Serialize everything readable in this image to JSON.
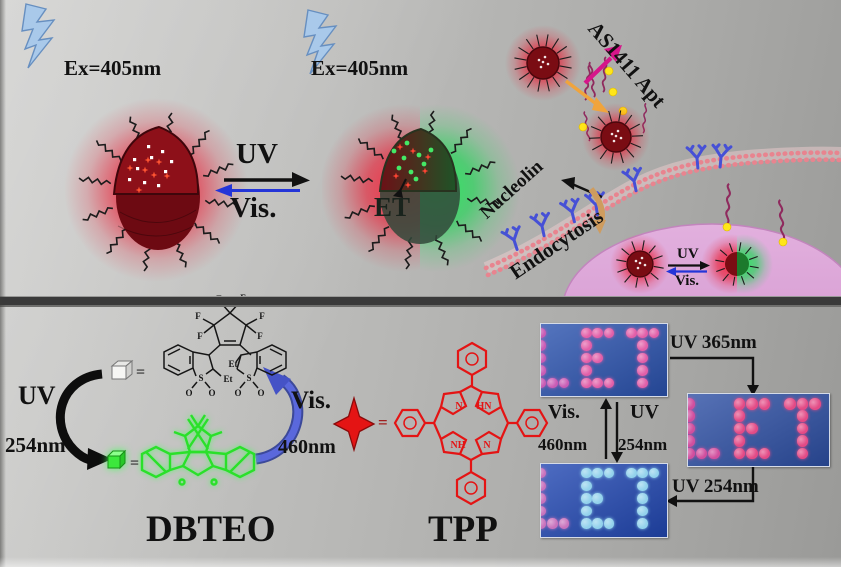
{
  "top": {
    "ex_left": "Ex=405nm",
    "ex_mid": "Ex=405nm",
    "eq_uv": "UV",
    "eq_vis": "Vis.",
    "et": "ET",
    "as1411": "AS1411 Apt",
    "nucleolin": "Nucleolin",
    "endocytosis": "Endocytosis",
    "cell_uv": "UV",
    "cell_vis": "Vis."
  },
  "bottom": {
    "uv": "UV",
    "nm254": "254nm",
    "vis": "Vis.",
    "nm460": "460nm",
    "open_eq": "=",
    "closed_eq": "=",
    "tpp_eq": "=",
    "dbteo": "DBTEO",
    "tpp": "TPP"
  },
  "atoms": {
    "f": [
      "F",
      "F",
      "F",
      "F",
      "F",
      "F"
    ],
    "s": [
      "S",
      "S"
    ],
    "o": [
      "O",
      "O",
      "O",
      "O"
    ],
    "et": [
      "Et",
      "Et"
    ],
    "n": "N",
    "hn": "HN",
    "nh": "NH",
    "n2": "N"
  },
  "panels": {
    "letters": "ET",
    "pattern": [
      "X...XXX.XXX",
      "X...X....X.",
      "X...XX...X.",
      "X...X....X.",
      "XXX.XXX..X."
    ],
    "p1": {
      "bg": "#2a52ae",
      "dot": "#e25fa8",
      "alt": "#c95cb5"
    },
    "p2": {
      "bg": "#2d4fa4",
      "dot": "#e34b86",
      "alt": "#d14f9e"
    },
    "p3": {
      "bg": "#2147b2",
      "dot": "#93d2ec",
      "alt": "#c873bd"
    },
    "uv365": "UV 365nm",
    "uv254": "UV 254nm",
    "vis": "Vis.",
    "uv": "UV",
    "nm460": "460nm",
    "nm254": "254nm"
  },
  "colors": {
    "red_glow": "#ea1c33",
    "green_glow": "#16d84e",
    "membrane": "#e8848f",
    "receptor": "#4650d6",
    "cell": "#dba6d6",
    "aptamer_arrow": "#d6158a",
    "uptake_arrow": "#f0a43c",
    "yellow_tag": "#ffe619",
    "blue_arrow": "#2435d8",
    "tpp_red": "#e41414",
    "dbteo_green": "#2ae02a",
    "spike": "#1c1c1c"
  }
}
